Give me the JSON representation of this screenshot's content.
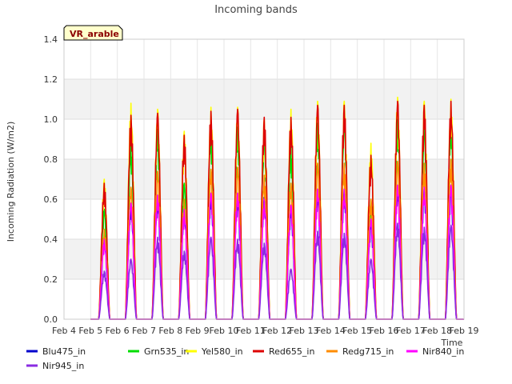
{
  "chart_data": {
    "type": "line",
    "title": "Incoming bands",
    "site_label": "VR_arable",
    "ylabel": "Incoming Radiation (W/m2)",
    "xlabel": "Time",
    "ylim": [
      0,
      1.4
    ],
    "yticks": [
      "0.0",
      "0.2",
      "0.4",
      "0.6",
      "0.8",
      "1.0",
      "1.2",
      "1.4"
    ],
    "xlim": [
      4,
      19
    ],
    "xticks": [
      "Feb 4",
      "Feb 5",
      "Feb 6",
      "Feb 7",
      "Feb 8",
      "Feb 9",
      "Feb 10",
      "Feb 11",
      "Feb 12",
      "Feb 13",
      "Feb 14",
      "Feb 15",
      "Feb 16",
      "Feb 17",
      "Feb 18",
      "Feb 19"
    ],
    "grid": true,
    "legend_position": "bottom",
    "day_start": 5,
    "series": [
      {
        "name": "Blu475_in",
        "color": "#0000cc",
        "values": [
          0.41,
          0.58,
          0.62,
          0.55,
          0.63,
          0.63,
          0.61,
          0.57,
          0.65,
          0.65,
          0.5,
          0.67,
          0.66,
          0.67
        ]
      },
      {
        "name": "Grn535_in",
        "color": "#00dd00",
        "values": [
          0.55,
          0.88,
          0.95,
          0.68,
          0.96,
          0.96,
          0.9,
          0.86,
          0.98,
          0.99,
          0.6,
          1.0,
          0.95,
          1.0
        ]
      },
      {
        "name": "Yel580_in",
        "color": "#ffff00",
        "values": [
          0.7,
          1.08,
          1.05,
          0.94,
          1.06,
          1.06,
          1.0,
          1.05,
          1.09,
          1.09,
          0.88,
          1.11,
          1.09,
          1.1
        ]
      },
      {
        "name": "Red655_in",
        "color": "#dd0000",
        "values": [
          0.68,
          1.02,
          1.03,
          0.92,
          1.04,
          1.05,
          1.01,
          1.01,
          1.07,
          1.07,
          0.82,
          1.09,
          1.07,
          1.09
        ]
      },
      {
        "name": "Redg715_in",
        "color": "#ff8c00",
        "values": [
          0.45,
          0.66,
          0.74,
          0.6,
          0.75,
          0.76,
          0.72,
          0.68,
          0.78,
          0.78,
          0.6,
          0.79,
          0.78,
          0.8
        ]
      },
      {
        "name": "Nir840_in",
        "color": "#ff00ff",
        "values": [
          0.4,
          0.58,
          0.62,
          0.55,
          0.63,
          0.63,
          0.6,
          0.57,
          0.65,
          0.65,
          0.5,
          0.67,
          0.66,
          0.67
        ]
      },
      {
        "name": "Nir945_in",
        "color": "#8a2be2",
        "values": [
          0.24,
          0.3,
          0.41,
          0.34,
          0.41,
          0.4,
          0.38,
          0.25,
          0.44,
          0.43,
          0.3,
          0.48,
          0.46,
          0.47
        ]
      }
    ]
  }
}
